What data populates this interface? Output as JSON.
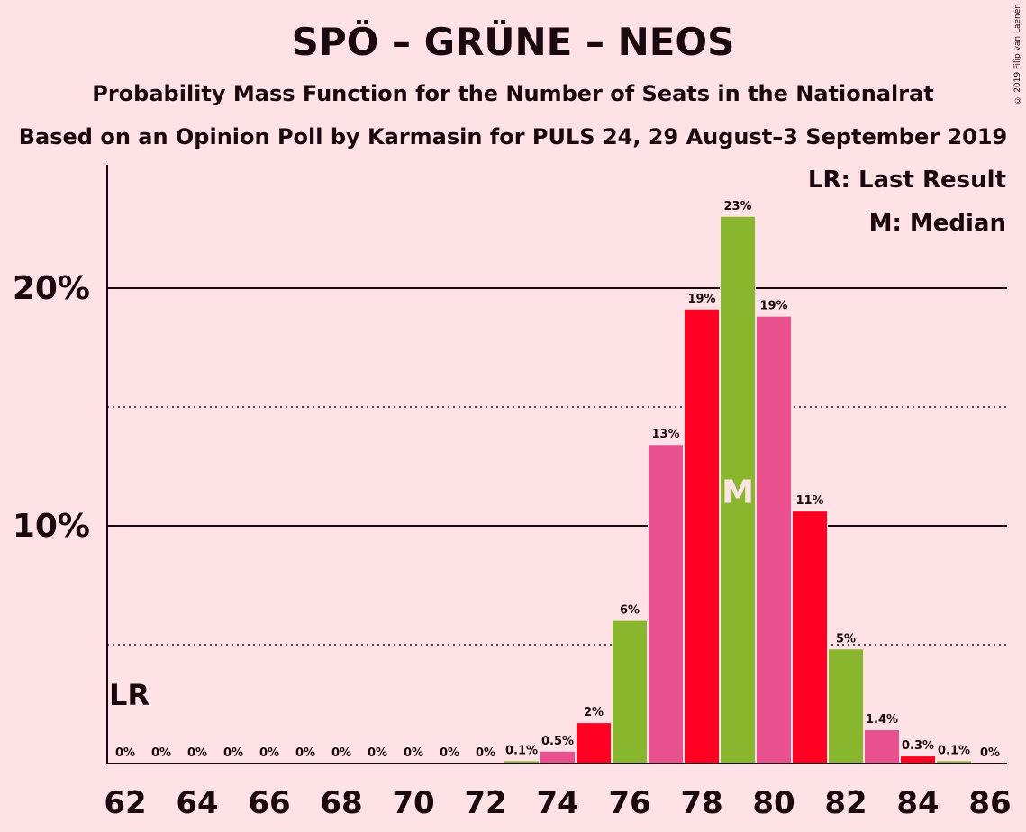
{
  "title": "SPÖ – GRÜNE – NEOS",
  "subtitle": "Probability Mass Function for the Number of Seats in the Nationalrat",
  "subtitle2": "Based on an Opinion Poll by Karmasin for PULS 24, 29 August–3 September 2019",
  "copyright": "© 2019 Filip van Laenen",
  "legend": {
    "lr": "LR: Last Result",
    "median": "M: Median"
  },
  "markers": {
    "last_result_label": "LR",
    "median_label": "M",
    "last_result_seat": 62,
    "median_seat": 79
  },
  "colors": {
    "background": "#FFE2E6",
    "spo": "#FF0022",
    "grune": "#88B62C",
    "neos": "#E8518E"
  },
  "chart_data": {
    "type": "bar",
    "x": [
      62,
      63,
      64,
      65,
      66,
      67,
      68,
      69,
      70,
      71,
      72,
      73,
      74,
      75,
      76,
      77,
      78,
      79,
      80,
      81,
      82,
      83,
      84,
      85,
      86
    ],
    "values": [
      0,
      0,
      0,
      0,
      0,
      0,
      0,
      0,
      0,
      0,
      0,
      0.1,
      0.5,
      1.7,
      6.0,
      13.4,
      19.1,
      23.0,
      18.8,
      10.6,
      4.8,
      1.4,
      0.3,
      0.1,
      0
    ],
    "data_labels": [
      "0%",
      "0%",
      "0%",
      "0%",
      "0%",
      "0%",
      "0%",
      "0%",
      "0%",
      "0%",
      "0%",
      "0.1%",
      "0.5%",
      "2%",
      "6%",
      "13%",
      "19%",
      "23%",
      "19%",
      "11%",
      "5%",
      "1.4%",
      "0.3%",
      "0.1%",
      "0%"
    ],
    "x_tick_labels": [
      "62",
      "64",
      "66",
      "68",
      "70",
      "72",
      "74",
      "76",
      "78",
      "80",
      "82",
      "84",
      "86"
    ],
    "y_tick_labels": [
      "10%",
      "20%"
    ],
    "ylim": [
      0,
      25
    ],
    "gridlines_solid": [
      10,
      20
    ],
    "gridlines_dotted": [
      5,
      15
    ],
    "legend_placement": "top-right"
  }
}
